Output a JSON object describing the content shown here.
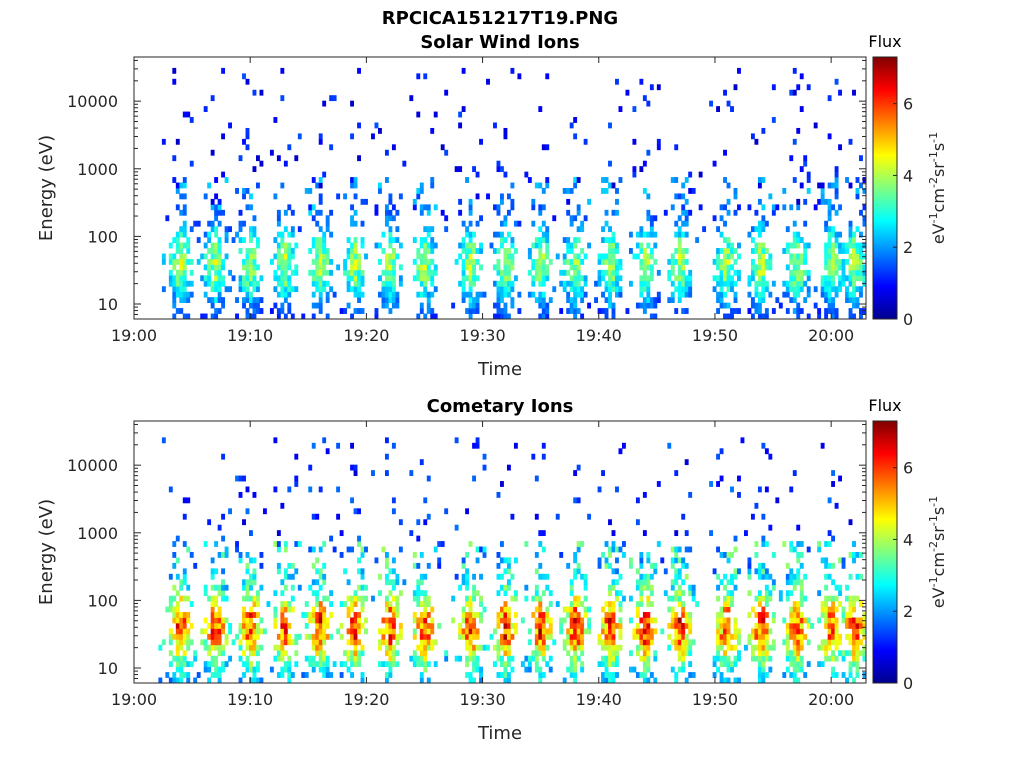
{
  "figure_title": "RPCICA151217T19.PNG",
  "chart_data": [
    {
      "type": "heatmap",
      "title": "Solar Wind Ions",
      "xlabel": "Time",
      "ylabel": "Energy (eV)",
      "x_ticks": [
        "19:00",
        "19:10",
        "19:20",
        "19:30",
        "19:40",
        "19:50",
        "20:00"
      ],
      "x_range": [
        "19:00",
        "20:03"
      ],
      "y_scale": "log",
      "y_ticks": [
        10,
        100,
        1000,
        10000
      ],
      "y_tick_labels": [
        "10",
        "100",
        "1000",
        "10000"
      ],
      "y_range": [
        6,
        45000
      ],
      "colorbar": {
        "label": "Flux",
        "unit_label": "eV-1cm-2sr-1s-1",
        "range": [
          0,
          7.3
        ],
        "ticks": [
          0,
          2,
          4,
          6
        ],
        "tick_labels": [
          "0",
          "2",
          "4",
          "6"
        ],
        "colormap": "jet"
      },
      "data_start": "19:02",
      "burst_times": [
        "19:04",
        "19:07",
        "19:10",
        "19:13",
        "19:16",
        "19:19",
        "19:22",
        "19:25",
        "19:29",
        "19:32",
        "19:35",
        "19:38",
        "19:41",
        "19:44",
        "19:47",
        "19:51",
        "19:54",
        "19:57",
        "20:00",
        "20:02"
      ],
      "band_energy_eV": [
        6,
        300
      ],
      "peak_energy_eV": 40,
      "peak_flux": 4.2,
      "sparse_energy_eV": [
        300,
        30000
      ],
      "sparse_flux": 1.0,
      "late_enhanced_energy_eV": [
        200,
        700
      ]
    },
    {
      "type": "heatmap",
      "title": "Cometary Ions",
      "xlabel": "Time",
      "ylabel": "Energy (eV)",
      "x_ticks": [
        "19:00",
        "19:10",
        "19:20",
        "19:30",
        "19:40",
        "19:50",
        "20:00"
      ],
      "x_range": [
        "19:00",
        "20:03"
      ],
      "y_scale": "log",
      "y_ticks": [
        10,
        100,
        1000,
        10000
      ],
      "y_tick_labels": [
        "10",
        "100",
        "1000",
        "10000"
      ],
      "y_range": [
        6,
        45000
      ],
      "colorbar": {
        "label": "Flux",
        "unit_label": "eV-1cm-2sr-1s-1",
        "range": [
          0,
          7.3
        ],
        "ticks": [
          0,
          2,
          4,
          6
        ],
        "tick_labels": [
          "0",
          "2",
          "4",
          "6"
        ],
        "colormap": "jet"
      },
      "data_start": "19:02",
      "burst_times": [
        "19:04",
        "19:07",
        "19:10",
        "19:13",
        "19:16",
        "19:19",
        "19:22",
        "19:25",
        "19:29",
        "19:32",
        "19:35",
        "19:38",
        "19:41",
        "19:44",
        "19:47",
        "19:51",
        "19:54",
        "19:57",
        "20:00",
        "20:02"
      ],
      "band_energy_eV": [
        6,
        700
      ],
      "peak_energy_eV": 40,
      "peak_flux": 6.5,
      "sparse_energy_eV": [
        700,
        25000
      ],
      "sparse_flux": 1.2,
      "late_enhanced_energy_eV": [
        100,
        700
      ]
    }
  ]
}
